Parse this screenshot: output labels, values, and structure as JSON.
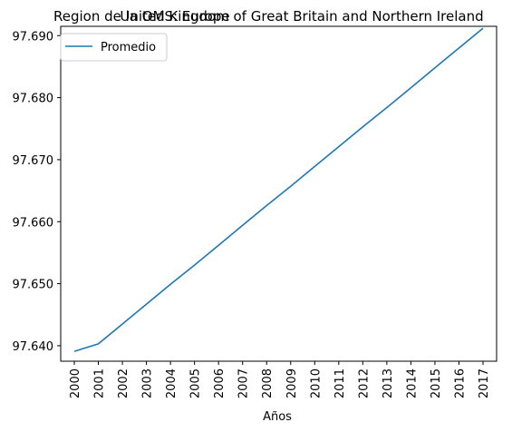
{
  "chart_data": {
    "type": "line",
    "title_left": "Region de la OMS: Europe",
    "title_center": "United Kingdom of Great Britain and Northern Ireland",
    "xlabel": "Años",
    "ylabel": "",
    "categories": [
      "2000",
      "2001",
      "2002",
      "2003",
      "2004",
      "2005",
      "2006",
      "2007",
      "2008",
      "2009",
      "2010",
      "2011",
      "2012",
      "2013",
      "2014",
      "2015",
      "2016",
      "2017"
    ],
    "series": [
      {
        "name": "Promedio",
        "color": "#1f77b4",
        "values": [
          97.6391,
          97.6403,
          97.6435,
          97.6467,
          97.6499,
          97.653,
          97.6562,
          97.6594,
          97.6626,
          97.6657,
          97.6689,
          97.6721,
          97.6753,
          97.6784,
          97.6816,
          97.6848,
          97.688,
          97.6912
        ]
      }
    ],
    "ylim": [
      97.6375,
      97.6915
    ],
    "yticks": [
      "97.640",
      "97.650",
      "97.660",
      "97.670",
      "97.680",
      "97.690"
    ],
    "grid": false,
    "legend_position": "top-left"
  }
}
